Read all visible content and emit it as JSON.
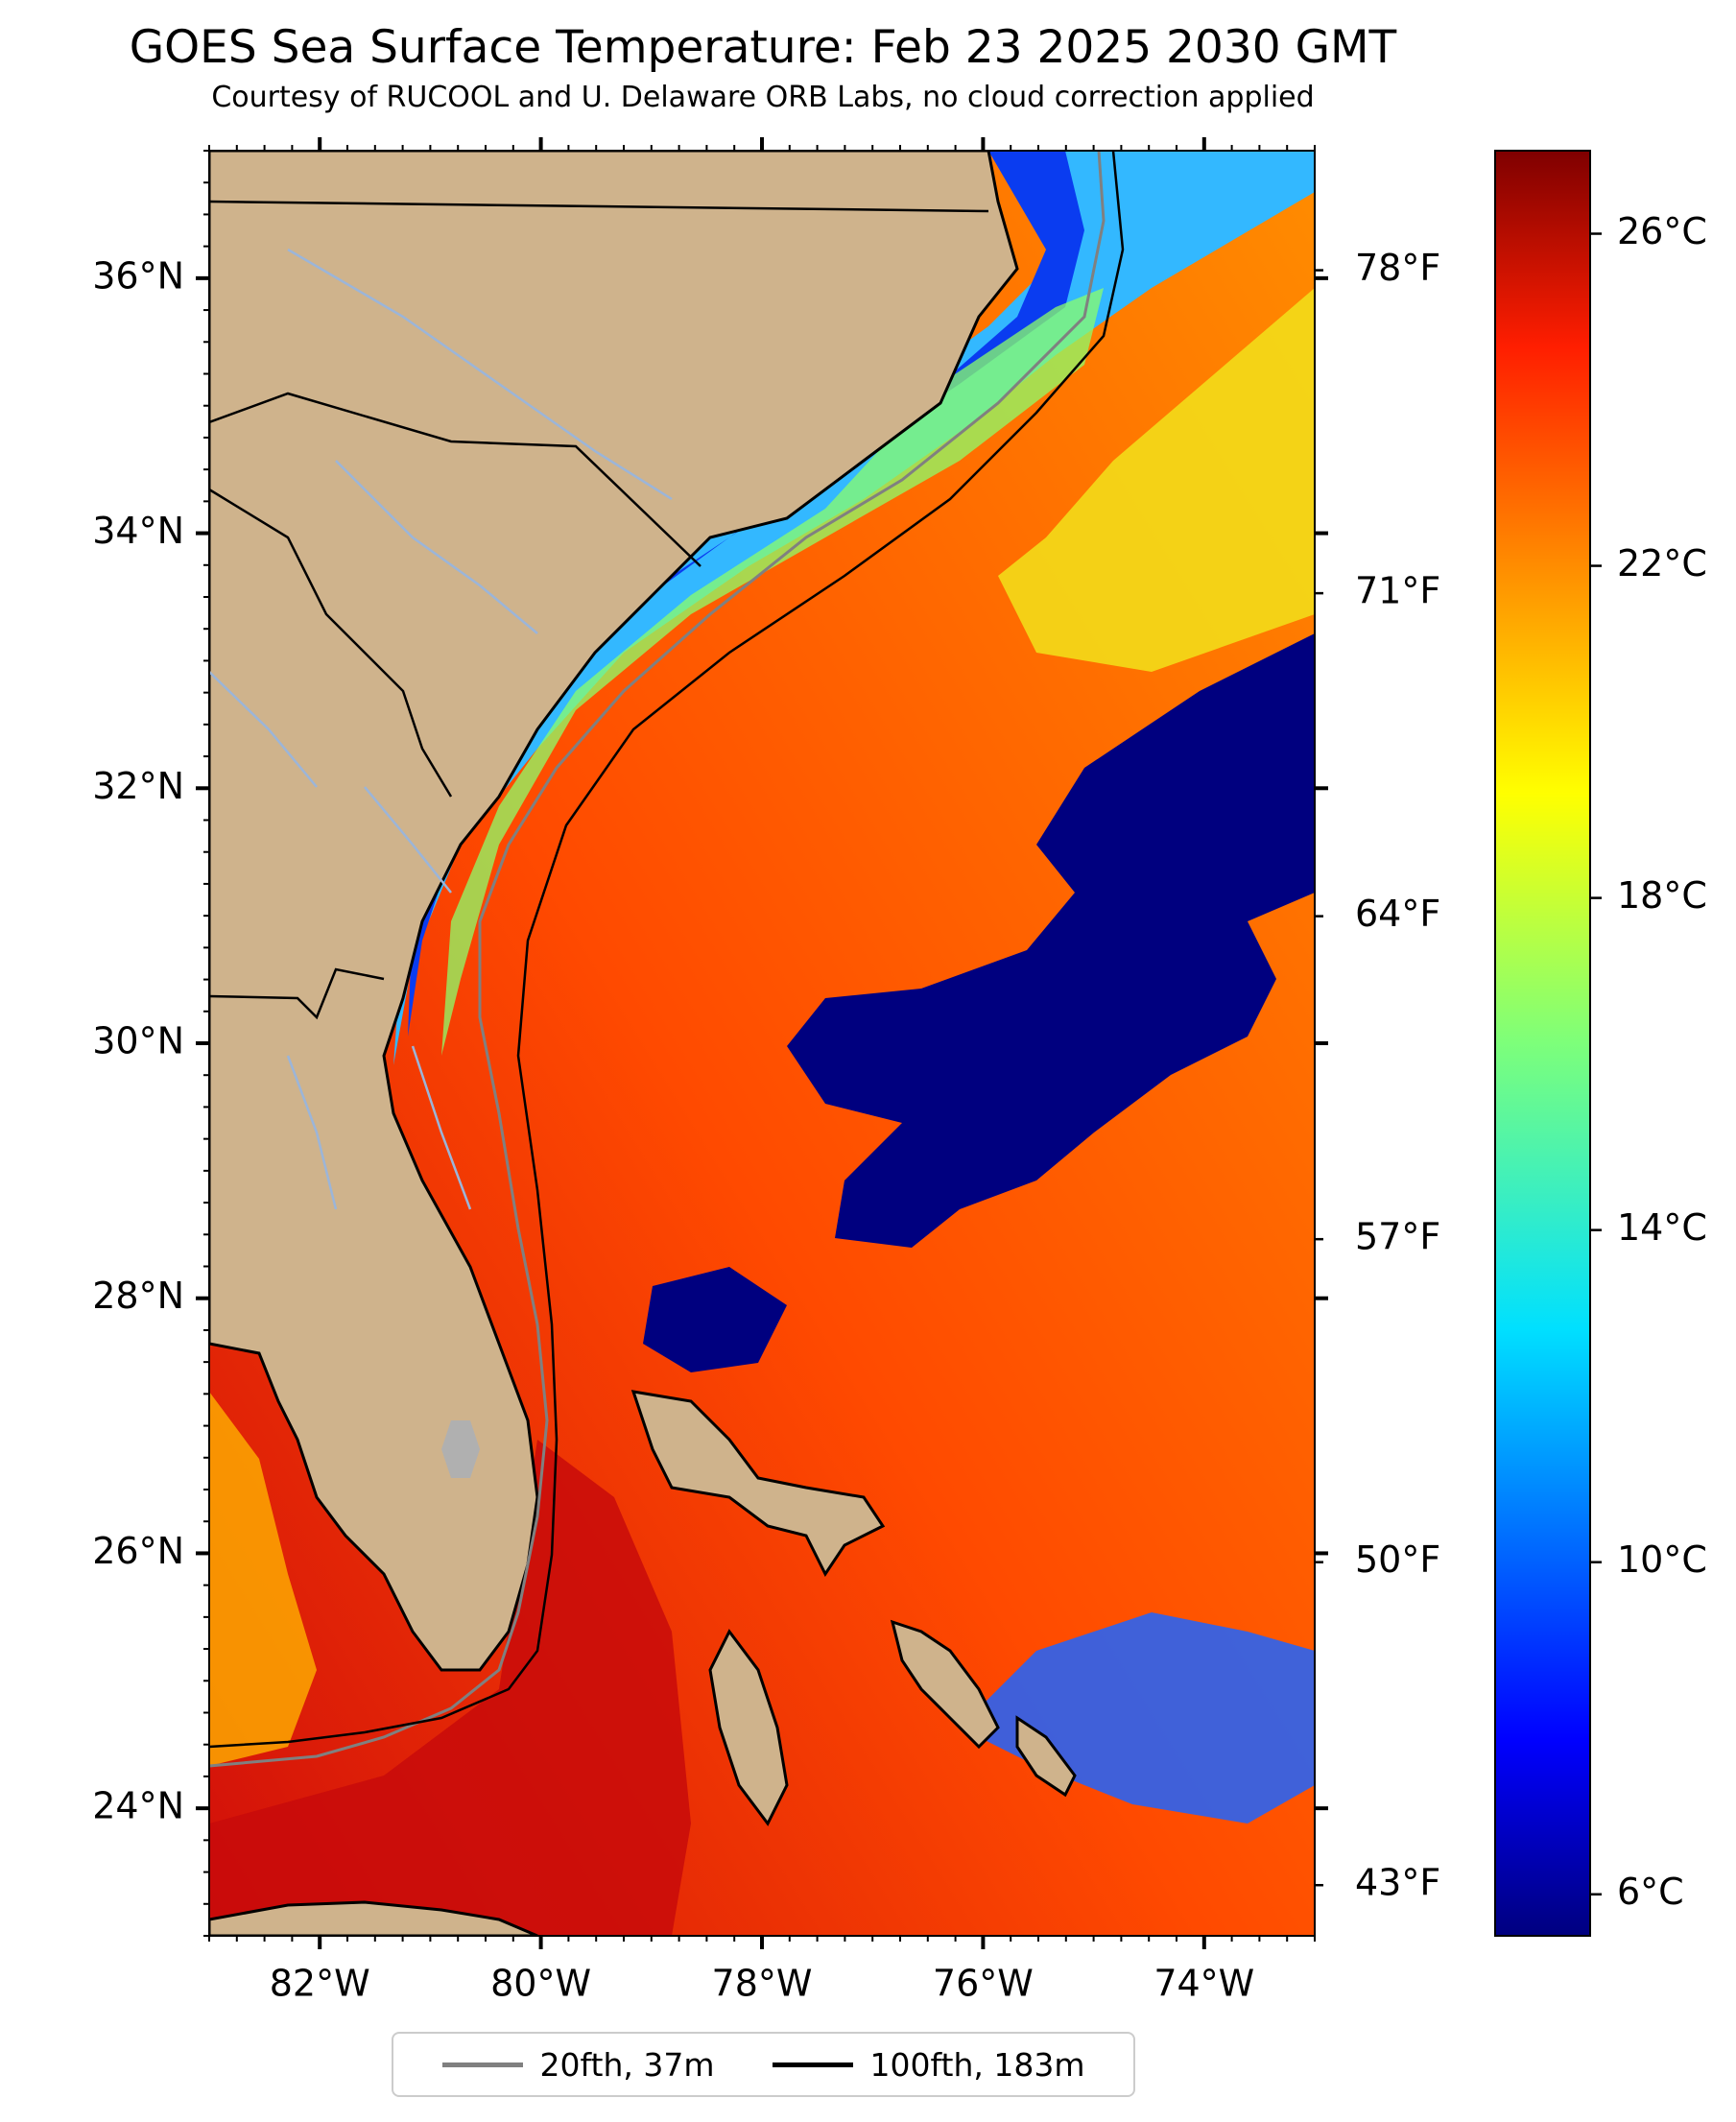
{
  "title": "GOES Sea Surface Temperature: Feb 23 2025 2030 GMT",
  "subtitle": "Courtesy of RUCOOL and U. Delaware ORB Labs, no cloud correction applied",
  "map": {
    "extent": {
      "lon": [
        -83.0,
        -73.0
      ],
      "lat": [
        23.0,
        37.0
      ]
    },
    "land_color": "#cfb38c",
    "no_data_color": "#ffffff",
    "lat_ticks": [
      {
        "value": 24,
        "label": "24°N"
      },
      {
        "value": 26,
        "label": "26°N"
      },
      {
        "value": 28,
        "label": "28°N"
      },
      {
        "value": 30,
        "label": "30°N"
      },
      {
        "value": 32,
        "label": "32°N"
      },
      {
        "value": 34,
        "label": "34°N"
      },
      {
        "value": 36,
        "label": "36°N"
      }
    ],
    "lon_ticks": [
      {
        "value": -82,
        "label": "82°W"
      },
      {
        "value": -80,
        "label": "80°W"
      },
      {
        "value": -78,
        "label": "78°W"
      },
      {
        "value": -76,
        "label": "76°W"
      },
      {
        "value": -74,
        "label": "74°W"
      }
    ],
    "fahrenheit_ticks": [
      {
        "value_c": 6.11,
        "label": "43°F"
      },
      {
        "value_c": 10.0,
        "label": "50°F"
      },
      {
        "value_c": 13.89,
        "label": "57°F"
      },
      {
        "value_c": 17.78,
        "label": "64°F"
      },
      {
        "value_c": 21.67,
        "label": "71°F"
      },
      {
        "value_c": 25.56,
        "label": "78°F"
      }
    ]
  },
  "colorbar": {
    "colormap": "jet",
    "range_c": [
      5.5,
      27.0
    ],
    "ticks": [
      {
        "value": 6,
        "label": "6°C"
      },
      {
        "value": 10,
        "label": "10°C"
      },
      {
        "value": 14,
        "label": "14°C"
      },
      {
        "value": 18,
        "label": "18°C"
      },
      {
        "value": 22,
        "label": "22°C"
      },
      {
        "value": 26,
        "label": "26°C"
      }
    ]
  },
  "legend": {
    "placement": "bottom-center",
    "items": [
      {
        "label": "20fth, 37m",
        "color": "#808080"
      },
      {
        "label": "100fth, 183m",
        "color": "#000000"
      }
    ]
  }
}
